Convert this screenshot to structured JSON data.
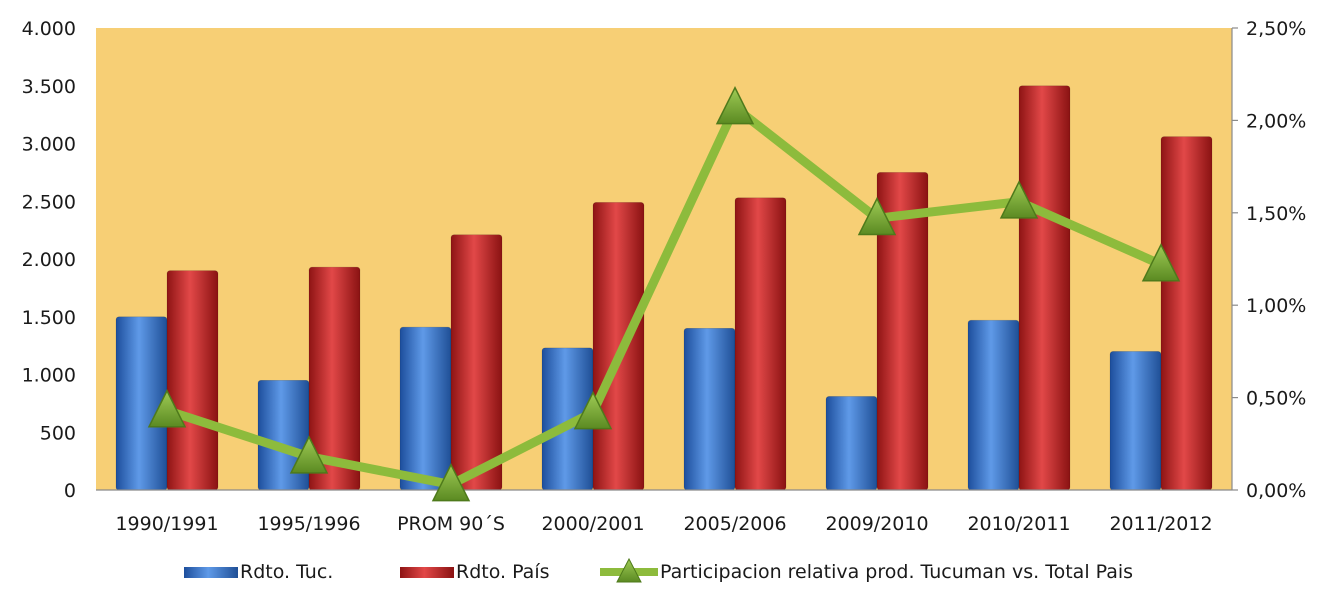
{
  "chart_data": {
    "type": "bar",
    "categories": [
      "1990/1991",
      "1995/1996",
      "PROM 90´S",
      "2000/2001",
      "2005/2006",
      "2009/2010",
      "2010/2011",
      "2011/2012"
    ],
    "series": [
      {
        "name": "Rdto. Tuc.",
        "type": "bar",
        "axis": "left",
        "color": "#3a78d0",
        "values": [
          1500,
          950,
          1410,
          1230,
          1400,
          810,
          1470,
          1200
        ]
      },
      {
        "name": "Rdto. País",
        "type": "bar",
        "axis": "left",
        "color": "#cc2a2a",
        "values": [
          1900,
          1930,
          2210,
          2490,
          2530,
          2750,
          3500,
          3060
        ]
      },
      {
        "name": "Participacion relativa prod. Tucuman vs. Total Pais",
        "type": "line",
        "axis": "right",
        "color": "#8dbb3c",
        "values": [
          0.0043,
          0.0018,
          0.0003,
          0.0042,
          0.0207,
          0.0147,
          0.0156,
          0.0122
        ]
      }
    ],
    "y_left": {
      "ylim": [
        0,
        4000
      ],
      "ticks": [
        0,
        500,
        1000,
        1500,
        2000,
        2500,
        3000,
        3500,
        4000
      ],
      "tick_labels": [
        "0",
        "500",
        "1.000",
        "1.500",
        "2.000",
        "2.500",
        "3.000",
        "3.500",
        "4.000"
      ]
    },
    "y_right": {
      "ylim": [
        0,
        0.025
      ],
      "ticks": [
        0,
        0.005,
        0.01,
        0.015,
        0.02,
        0.025
      ],
      "tick_labels": [
        "0,00%",
        "0,50%",
        "1,00%",
        "1,50%",
        "2,00%",
        "2,50%"
      ]
    },
    "plot_background": "#f7cf75",
    "grid": false,
    "legend_position": "bottom"
  }
}
